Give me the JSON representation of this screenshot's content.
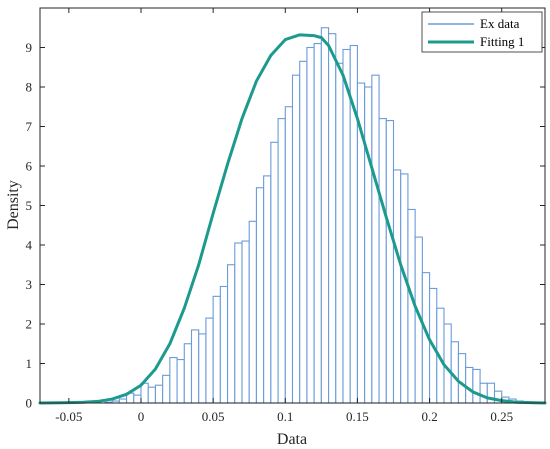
{
  "chart_data": {
    "type": "bar",
    "subtype": "histogram-with-fit",
    "xlabel": "Data",
    "ylabel": "Density",
    "xlim": [
      -0.07,
      0.28
    ],
    "ylim": [
      0,
      10
    ],
    "xticks": [
      -0.05,
      0,
      0.05,
      0.1,
      0.15,
      0.2,
      0.25
    ],
    "xtick_labels": [
      "-0.05",
      "0",
      "0.05",
      "0.1",
      "0.15",
      "0.2",
      "0.25"
    ],
    "yticks": [
      0,
      1,
      2,
      3,
      4,
      5,
      6,
      7,
      8,
      9
    ],
    "ytick_labels": [
      "0",
      "1",
      "2",
      "3",
      "4",
      "5",
      "6",
      "7",
      "8",
      "9"
    ],
    "grid": false,
    "legend_position": "top-right",
    "histogram": {
      "name": "Ex data",
      "color": "#6b9bd8",
      "bin_start": -0.025,
      "bin_width": 0.005,
      "values": [
        0.02,
        0.05,
        0.1,
        0.25,
        0.2,
        0.5,
        0.4,
        0.45,
        0.7,
        1.15,
        1.1,
        1.5,
        1.85,
        1.75,
        2.15,
        2.7,
        2.95,
        3.5,
        4.05,
        4.1,
        4.6,
        5.45,
        5.75,
        6.6,
        7.2,
        7.5,
        8.3,
        8.65,
        9.0,
        9.1,
        9.5,
        9.35,
        8.6,
        8.95,
        9.05,
        8.1,
        8.0,
        8.3,
        7.2,
        7.15,
        5.9,
        5.8,
        4.9,
        4.2,
        3.3,
        2.9,
        2.4,
        2.0,
        1.55,
        1.25,
        0.9,
        0.85,
        0.5,
        0.5,
        0.3,
        0.15,
        0.1,
        0.05,
        0.03,
        0.01
      ]
    },
    "series": [
      {
        "name": "Fitting 1",
        "color": "#1d9a8e",
        "type": "line",
        "x": [
          -0.07,
          -0.05,
          -0.04,
          -0.03,
          -0.02,
          -0.01,
          0.0,
          0.01,
          0.02,
          0.03,
          0.04,
          0.05,
          0.06,
          0.07,
          0.08,
          0.09,
          0.1,
          0.11,
          0.12,
          0.125,
          0.13,
          0.14,
          0.15,
          0.16,
          0.17,
          0.18,
          0.19,
          0.2,
          0.21,
          0.22,
          0.23,
          0.24,
          0.25,
          0.26,
          0.28
        ],
        "y": [
          0.0,
          0.01,
          0.02,
          0.04,
          0.1,
          0.22,
          0.45,
          0.86,
          1.5,
          2.4,
          3.5,
          4.8,
          6.05,
          7.2,
          8.15,
          8.8,
          9.2,
          9.32,
          9.3,
          9.25,
          9.05,
          8.3,
          7.2,
          5.95,
          4.7,
          3.5,
          2.45,
          1.6,
          0.97,
          0.55,
          0.28,
          0.13,
          0.06,
          0.02,
          0.0
        ]
      }
    ],
    "legend": [
      "Ex data",
      "Fitting 1"
    ]
  }
}
